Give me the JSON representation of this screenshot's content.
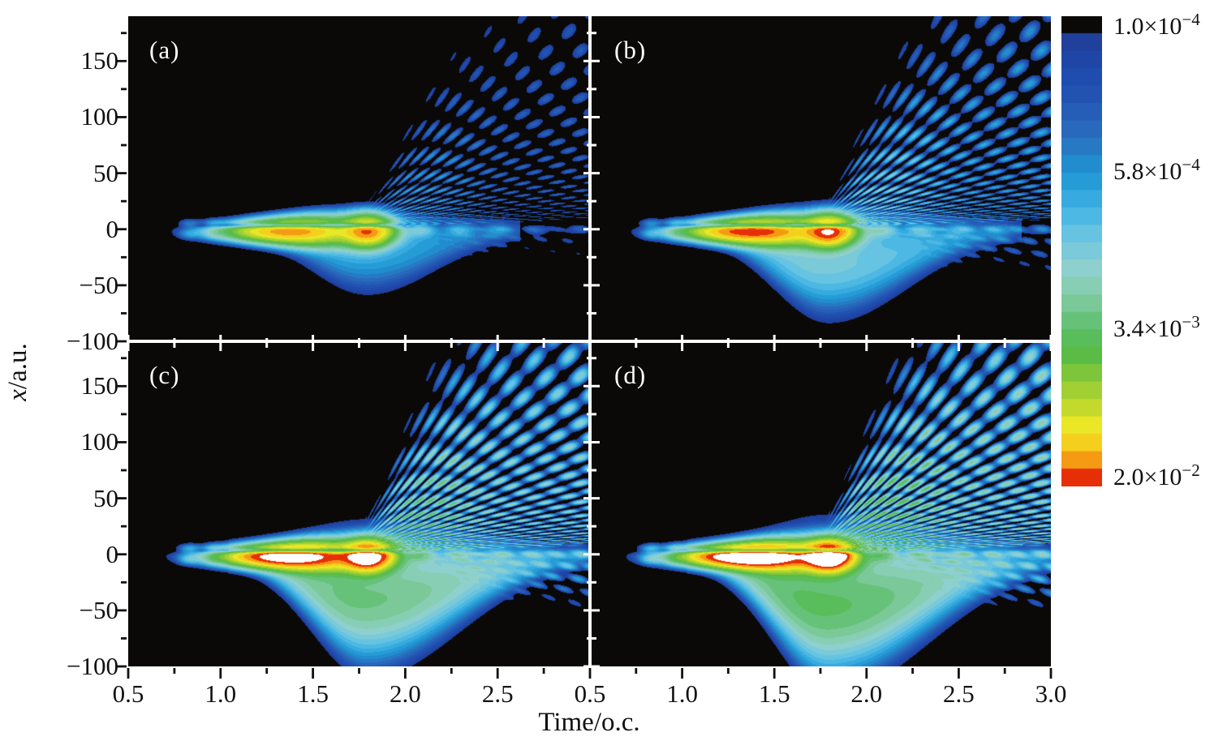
{
  "chart_data": {
    "type": "heatmap",
    "title": "",
    "xlabel": "Time/o.c.",
    "ylabel": "x/a.u.",
    "ylabel_italic": "x",
    "ylabel_rest": "/a.u.",
    "x_range": [
      0.5,
      3.0
    ],
    "y_range": [
      -100,
      190
    ],
    "x_minor_step": 0.25,
    "y_minor_step": 25,
    "scale": "log",
    "value_range": [
      0.0001,
      0.02
    ],
    "under_color": "#0a0907",
    "over_color": "#ffffff",
    "x_ticks": {
      "left_panel": {
        "values": [
          0.5,
          1.0,
          1.5,
          2.0,
          2.5
        ],
        "labels": [
          "0.5",
          "1.0",
          "1.5",
          "2.0",
          "2.5"
        ]
      },
      "right_panel": {
        "values": [
          0.5,
          1.0,
          1.5,
          2.0,
          2.5,
          3.0
        ],
        "labels": [
          "0.5",
          "1.0",
          "1.5",
          "2.0",
          "2.5",
          "3.0"
        ]
      }
    },
    "y_ticks": {
      "values": [
        150,
        100,
        50,
        0,
        -50,
        -100
      ],
      "labels": [
        "150",
        "100",
        "50",
        "0",
        "−50",
        "−100"
      ]
    },
    "colorbar": {
      "position": "right",
      "orientation": "vertical, low value at top",
      "bands": 27,
      "ticks": [
        {
          "label": "1.0×10⁻⁴",
          "base": "1.0×10",
          "sup": "−4",
          "value": 0.0001
        },
        {
          "label": "5.8×10⁻⁴",
          "base": "5.8×10",
          "sup": "−4",
          "value": 0.00058
        },
        {
          "label": "3.4×10⁻³",
          "base": "3.4×10",
          "sup": "−3",
          "value": 0.0034
        },
        {
          "label": "2.0×10⁻²",
          "base": "2.0×10",
          "sup": "−2",
          "value": 0.02
        }
      ]
    },
    "colormap_stops": [
      [
        0.0,
        "#20409c"
      ],
      [
        0.07,
        "#1e4aae"
      ],
      [
        0.14,
        "#2357b4"
      ],
      [
        0.22,
        "#2a6fbe"
      ],
      [
        0.3,
        "#1e95d3"
      ],
      [
        0.38,
        "#3fb2e3"
      ],
      [
        0.45,
        "#6cc6e2"
      ],
      [
        0.52,
        "#8ed0cd"
      ],
      [
        0.58,
        "#85cda8"
      ],
      [
        0.65,
        "#62c071"
      ],
      [
        0.71,
        "#52ba48"
      ],
      [
        0.77,
        "#85c838"
      ],
      [
        0.83,
        "#bad72e"
      ],
      [
        0.88,
        "#e9e726"
      ],
      [
        0.92,
        "#f5cf1e"
      ],
      [
        0.955,
        "#f5a415"
      ],
      [
        0.985,
        "#ef6a0a"
      ],
      [
        1.0,
        "#e72f07"
      ]
    ],
    "panels": [
      {
        "label": "(a)",
        "row": 0,
        "col": 0,
        "features": {
          "hotspots_t": [
            1.35,
            1.8
          ],
          "hotspot_x": 0,
          "lobe_depth_au": -45,
          "fan_origin_t": 1.7
        },
        "render": {
          "c": 1.0,
          "l": 1.0,
          "f": 1.0,
          "d": 45,
          "tail": 0.5
        }
      },
      {
        "label": "(b)",
        "row": 0,
        "col": 1,
        "features": {
          "hotspots_t": [
            1.35,
            1.8
          ],
          "hotspot_x": 0,
          "lobe_depth_au": -62,
          "fan_origin_t": 1.7
        },
        "render": {
          "c": 1.25,
          "l": 1.9,
          "f": 2.3,
          "d": 62,
          "tail": 0.6
        }
      },
      {
        "label": "(c)",
        "row": 1,
        "col": 0,
        "features": {
          "hotspots_t": [
            1.35,
            1.8
          ],
          "hotspot_x": 0,
          "lobe_depth_au": -78,
          "fan_origin_t": 1.7
        },
        "render": {
          "c": 1.75,
          "l": 4.2,
          "f": 5.8,
          "d": 78,
          "tail": 0.7
        }
      },
      {
        "label": "(d)",
        "row": 1,
        "col": 1,
        "features": {
          "hotspots_t": [
            1.35,
            1.8
          ],
          "hotspot_x": 0,
          "lobe_depth_au": -88,
          "fan_origin_t": 1.7
        },
        "render": {
          "c": 2.1,
          "l": 5.2,
          "f": 7.5,
          "d": 88,
          "tail": 0.78
        }
      }
    ]
  }
}
